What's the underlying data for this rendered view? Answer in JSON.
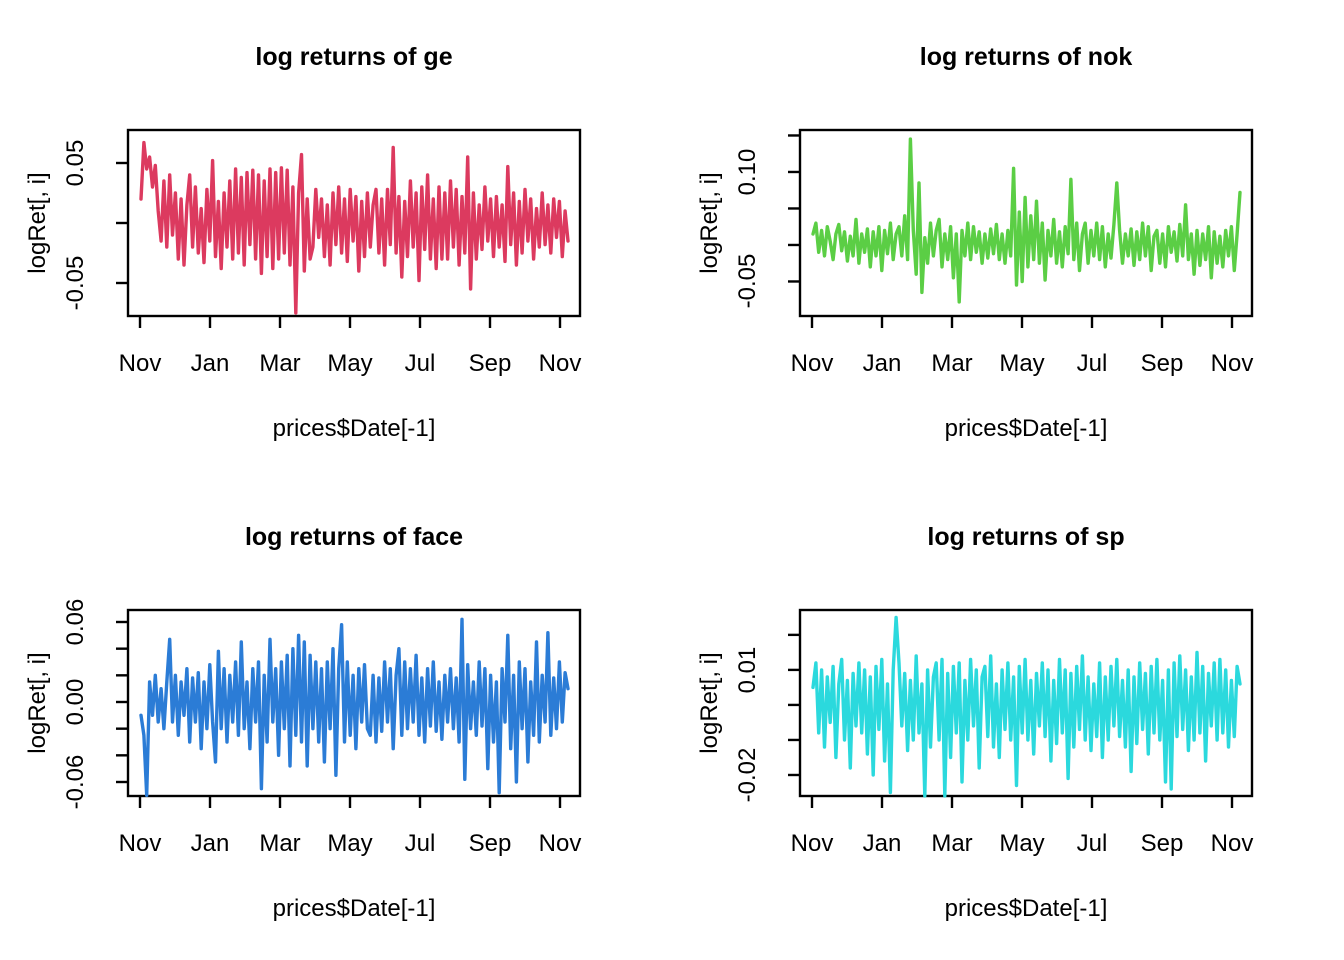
{
  "figure": {
    "background": "#ffffff",
    "text_color": "#000000",
    "layout": "2x2 grid of R base-graphics line plots"
  },
  "chart_data": [
    {
      "type": "line",
      "title": "log returns of ge",
      "xlabel": "prices$Date[-1]",
      "ylabel": "logRet[, i]",
      "color": "#DC3A5F",
      "x_tick_labels": [
        "Nov",
        "Jan",
        "Mar",
        "May",
        "Jul",
        "Sep",
        "Nov"
      ],
      "y_ticks": [
        {
          "value": 0.05,
          "label": "0.05"
        },
        {
          "value": 0.0,
          "label": ""
        },
        {
          "value": -0.05,
          "label": "-0.05"
        }
      ],
      "ylim": [
        -0.0775,
        0.0775
      ],
      "grid": false,
      "legend": null,
      "values": [
        0.02,
        0.067,
        0.045,
        0.055,
        0.03,
        0.048,
        0.01,
        -0.015,
        0.035,
        -0.02,
        0.04,
        -0.01,
        0.025,
        -0.03,
        0.02,
        -0.035,
        0.015,
        0.04,
        -0.02,
        0.03,
        -0.025,
        0.012,
        -0.033,
        0.028,
        -0.015,
        0.052,
        -0.028,
        0.018,
        -0.038,
        0.025,
        -0.02,
        0.035,
        -0.03,
        0.045,
        -0.025,
        0.038,
        -0.035,
        0.042,
        -0.018,
        0.044,
        -0.03,
        0.04,
        -0.042,
        0.035,
        -0.028,
        0.045,
        -0.038,
        0.042,
        -0.03,
        0.046,
        -0.025,
        0.044,
        -0.035,
        0.03,
        -0.075,
        0.025,
        0.057,
        -0.04,
        0.02,
        -0.03,
        -0.02,
        0.028,
        -0.012,
        0.02,
        -0.028,
        0.015,
        -0.035,
        0.025,
        -0.018,
        0.03,
        -0.025,
        0.02,
        -0.032,
        0.028,
        -0.015,
        0.022,
        -0.04,
        0.018,
        -0.028,
        0.025,
        -0.02,
        0.015,
        0.028,
        -0.025,
        0.02,
        -0.035,
        0.028,
        -0.018,
        0.063,
        -0.025,
        0.022,
        -0.045,
        0.018,
        -0.028,
        0.035,
        -0.02,
        0.025,
        -0.048,
        0.03,
        -0.022,
        0.04,
        -0.03,
        0.02,
        -0.038,
        0.03,
        -0.03,
        0.025,
        -0.03,
        0.035,
        -0.02,
        0.028,
        -0.035,
        0.022,
        -0.025,
        0.055,
        -0.055,
        0.025,
        -0.03,
        0.015,
        -0.022,
        0.03,
        -0.015,
        0.02,
        -0.028,
        0.022,
        -0.02,
        0.015,
        -0.032,
        0.047,
        -0.018,
        0.025,
        -0.035,
        0.018,
        -0.025,
        0.028,
        -0.015,
        0.02,
        -0.03,
        0.012,
        -0.02,
        0.025,
        -0.018,
        0.015,
        -0.025,
        0.02,
        -0.012,
        0.018,
        -0.028,
        0.01,
        -0.015
      ]
    },
    {
      "type": "line",
      "title": "log returns of nok",
      "xlabel": "prices$Date[-1]",
      "ylabel": "logRet[, i]",
      "color": "#5BCE45",
      "x_tick_labels": [
        "Nov",
        "Jan",
        "Mar",
        "May",
        "Jul",
        "Sep",
        "Nov"
      ],
      "y_ticks": [
        {
          "value": 0.15,
          "label": ""
        },
        {
          "value": 0.1,
          "label": "0.10"
        },
        {
          "value": 0.05,
          "label": ""
        },
        {
          "value": 0.0,
          "label": ""
        },
        {
          "value": -0.05,
          "label": "-0.05"
        }
      ],
      "ylim": [
        -0.0973,
        0.1575
      ],
      "grid": false,
      "legend": null,
      "values": [
        0.015,
        0.03,
        -0.01,
        0.02,
        -0.015,
        0.025,
        0.005,
        -0.02,
        0.015,
        0.028,
        -0.008,
        0.018,
        -0.022,
        0.012,
        -0.015,
        0.035,
        -0.025,
        0.015,
        -0.01,
        0.022,
        -0.03,
        0.018,
        -0.015,
        0.025,
        -0.035,
        0.02,
        -0.012,
        0.03,
        -0.02,
        0.015,
        0.025,
        -0.015,
        0.04,
        -0.02,
        0.145,
        0.02,
        -0.04,
        0.085,
        -0.065,
        0.01,
        -0.025,
        0.03,
        -0.015,
        0.02,
        0.035,
        -0.03,
        0.015,
        -0.02,
        0.025,
        -0.045,
        0.015,
        -0.078,
        0.02,
        -0.015,
        0.03,
        -0.02,
        0.025,
        -0.01,
        0.018,
        -0.025,
        0.015,
        -0.018,
        0.022,
        -0.012,
        0.028,
        -0.02,
        0.015,
        -0.025,
        0.02,
        -0.015,
        0.105,
        -0.055,
        0.045,
        -0.05,
        0.065,
        -0.03,
        0.04,
        -0.02,
        0.06,
        -0.025,
        0.03,
        -0.048,
        0.02,
        -0.015,
        0.035,
        -0.025,
        0.018,
        -0.03,
        0.025,
        -0.012,
        0.09,
        -0.02,
        0.03,
        -0.035,
        0.015,
        0.03,
        -0.025,
        0.02,
        -0.015,
        0.03,
        -0.02,
        0.025,
        -0.03,
        0.015,
        -0.018,
        0.028,
        0.085,
        0.02,
        -0.025,
        0.015,
        -0.015,
        0.022,
        -0.028,
        0.018,
        -0.02,
        0.03,
        -0.015,
        0.025,
        -0.035,
        0.012,
        0.02,
        -0.025,
        0.015,
        -0.03,
        0.025,
        -0.01,
        0.018,
        -0.022,
        0.028,
        -0.015,
        0.055,
        -0.02,
        0.015,
        -0.04,
        0.02,
        -0.028,
        0.015,
        -0.02,
        0.025,
        -0.045,
        0.018,
        -0.025,
        0.012,
        -0.03,
        0.02,
        -0.015,
        0.025,
        -0.035,
        0.015,
        0.072
      ]
    },
    {
      "type": "line",
      "title": "log returns of face",
      "xlabel": "prices$Date[-1]",
      "ylabel": "logRet[, i]",
      "color": "#2B7CD6",
      "x_tick_labels": [
        "Nov",
        "Jan",
        "Mar",
        "May",
        "Jul",
        "Sep",
        "Nov"
      ],
      "y_ticks": [
        {
          "value": 0.06,
          "label": "0.06"
        },
        {
          "value": 0.04,
          "label": ""
        },
        {
          "value": 0.02,
          "label": ""
        },
        {
          "value": 0.0,
          "label": "0.00"
        },
        {
          "value": -0.02,
          "label": ""
        },
        {
          "value": -0.04,
          "label": ""
        },
        {
          "value": -0.06,
          "label": "-0.06"
        }
      ],
      "ylim": [
        -0.0705,
        0.069
      ],
      "grid": false,
      "legend": null,
      "values": [
        -0.01,
        -0.025,
        -0.07,
        0.015,
        -0.01,
        0.02,
        -0.015,
        0.01,
        -0.02,
        0.015,
        0.047,
        -0.015,
        0.02,
        -0.025,
        0.015,
        -0.01,
        0.025,
        -0.03,
        0.018,
        -0.015,
        0.022,
        -0.035,
        0.015,
        -0.02,
        0.028,
        -0.015,
        -0.045,
        0.038,
        -0.02,
        0.025,
        -0.03,
        0.02,
        -0.015,
        0.03,
        -0.025,
        0.045,
        -0.02,
        0.015,
        -0.035,
        0.025,
        -0.015,
        0.03,
        -0.065,
        0.02,
        -0.03,
        0.047,
        -0.015,
        0.025,
        -0.04,
        0.03,
        -0.02,
        0.035,
        -0.048,
        0.04,
        -0.025,
        0.05,
        -0.03,
        0.045,
        -0.048,
        0.035,
        -0.02,
        0.03,
        -0.03,
        0.025,
        -0.045,
        0.03,
        -0.02,
        0.04,
        -0.055,
        0.025,
        0.058,
        -0.03,
        0.03,
        -0.025,
        0.02,
        -0.035,
        0.025,
        -0.015,
        0.028,
        -0.02,
        -0.025,
        0.02,
        -0.03,
        0.018,
        -0.022,
        0.03,
        -0.015,
        0.025,
        -0.035,
        0.02,
        0.04,
        -0.025,
        0.03,
        -0.02,
        0.025,
        -0.015,
        0.035,
        -0.025,
        0.018,
        -0.03,
        0.025,
        -0.018,
        0.03,
        -0.022,
        0.015,
        -0.028,
        0.02,
        -0.015,
        0.025,
        -0.02,
        0.018,
        -0.03,
        0.062,
        -0.058,
        0.028,
        -0.02,
        0.015,
        -0.025,
        0.03,
        -0.018,
        0.025,
        -0.05,
        0.02,
        -0.03,
        0.015,
        -0.068,
        0.025,
        -0.015,
        0.05,
        -0.035,
        0.02,
        -0.06,
        0.03,
        -0.02,
        0.025,
        -0.045,
        0.015,
        -0.025,
        0.045,
        -0.03,
        0.02,
        -0.015,
        0.052,
        -0.025,
        0.018,
        -0.02,
        0.03,
        -0.015,
        0.022,
        0.01
      ]
    },
    {
      "type": "line",
      "title": "log returns of sp",
      "xlabel": "prices$Date[-1]",
      "ylabel": "logRet[, i]",
      "color": "#2BD9DD",
      "x_tick_labels": [
        "Nov",
        "Jan",
        "Mar",
        "May",
        "Jul",
        "Sep",
        "Nov"
      ],
      "y_ticks": [
        {
          "value": 0.02,
          "label": ""
        },
        {
          "value": 0.01,
          "label": "0.01"
        },
        {
          "value": 0.0,
          "label": ""
        },
        {
          "value": -0.01,
          "label": ""
        },
        {
          "value": -0.02,
          "label": "-0.02"
        }
      ],
      "ylim": [
        -0.026,
        0.0271
      ],
      "grid": false,
      "legend": null,
      "values": [
        0.005,
        0.012,
        -0.008,
        0.01,
        -0.012,
        0.008,
        -0.005,
        0.011,
        -0.015,
        0.006,
        0.013,
        -0.01,
        0.007,
        -0.018,
        0.009,
        -0.006,
        0.012,
        -0.008,
        0.01,
        -0.014,
        0.008,
        -0.02,
        0.011,
        -0.007,
        0.013,
        -0.016,
        0.006,
        -0.025,
        0.01,
        0.025,
        0.012,
        -0.006,
        0.009,
        -0.013,
        0.007,
        -0.01,
        0.014,
        -0.008,
        0.006,
        -0.026,
        0.01,
        -0.012,
        0.008,
        0.012,
        -0.01,
        0.013,
        -0.026,
        0.009,
        -0.015,
        0.011,
        -0.008,
        0.012,
        -0.022,
        0.007,
        -0.01,
        0.013,
        -0.006,
        0.01,
        -0.018,
        0.008,
        0.011,
        -0.009,
        0.014,
        -0.012,
        0.006,
        -0.015,
        0.01,
        -0.007,
        0.012,
        -0.01,
        0.008,
        -0.023,
        0.011,
        -0.008,
        0.013,
        -0.01,
        0.007,
        -0.014,
        0.009,
        -0.006,
        0.012,
        -0.009,
        0.01,
        -0.016,
        0.007,
        -0.011,
        0.013,
        -0.008,
        0.01,
        -0.021,
        0.009,
        -0.012,
        0.011,
        -0.007,
        0.014,
        -0.01,
        0.008,
        -0.013,
        0.006,
        -0.009,
        0.012,
        -0.015,
        0.008,
        -0.01,
        0.011,
        -0.006,
        0.013,
        -0.009,
        0.007,
        -0.012,
        0.01,
        -0.019,
        0.008,
        -0.011,
        0.012,
        -0.007,
        0.009,
        -0.014,
        0.011,
        -0.008,
        0.013,
        -0.01,
        0.007,
        -0.022,
        0.01,
        -0.024,
        0.012,
        -0.009,
        0.014,
        -0.007,
        0.01,
        -0.013,
        0.008,
        -0.01,
        0.015,
        -0.008,
        0.011,
        -0.016,
        0.009,
        -0.006,
        0.012,
        -0.01,
        0.013,
        -0.008,
        0.01,
        -0.012,
        0.007,
        -0.009,
        0.011,
        0.006
      ]
    }
  ]
}
